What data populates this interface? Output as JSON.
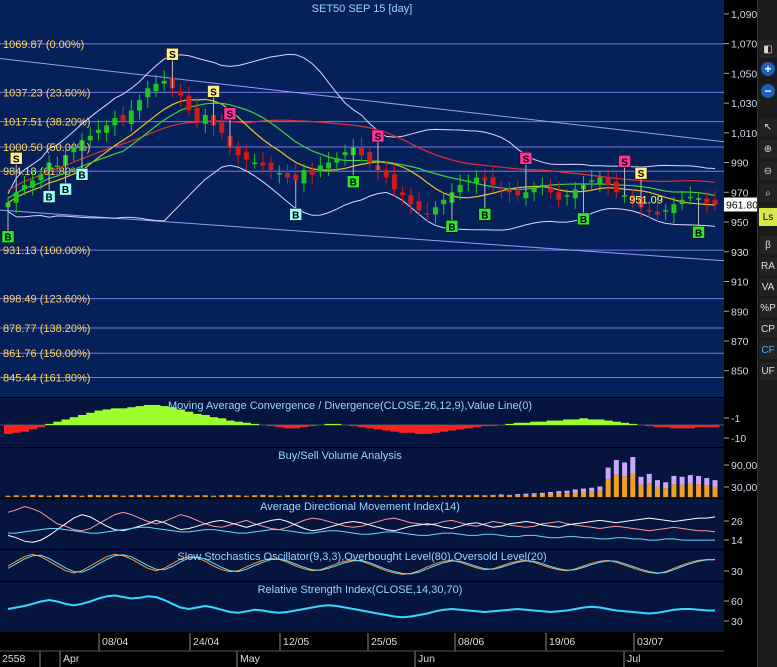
{
  "header": {
    "title": "SET50 SEP 15",
    "period": "[day]"
  },
  "colors": {
    "background": "#06205a",
    "up_candle": "#1fc41f",
    "down_candle": "#d21a1a",
    "fib_line": "#8a8aff",
    "channel": "#9a9af5",
    "bollinger": "#d8d8ff",
    "ma_red": "#e03030",
    "ma_yellow": "#f0c020",
    "ma_green": "#40d040",
    "macd_pos": "#9cff2c",
    "macd_neg": "#ff2020"
  },
  "chart_data": [
    {
      "name": "price",
      "type": "candlestick",
      "title": "SET50 SEP 15 [day]",
      "ylim": [
        833,
        1098
      ],
      "y_ticks": [
        "1,090",
        "1,070",
        "1,050",
        "1,030",
        "1,010",
        "990",
        "970",
        "950",
        "930",
        "910",
        "890",
        "870",
        "850"
      ],
      "last_price": "961.80",
      "fib_levels": [
        {
          "value": 1069.87,
          "label": "1069.87 (0.00%)"
        },
        {
          "value": 1037.23,
          "label": "1037.23 (23.60%)"
        },
        {
          "value": 1017.51,
          "label": "1017.51 (38.20%)"
        },
        {
          "value": 1000.5,
          "label": "1000.50 (50.00%)"
        },
        {
          "value": 984.18,
          "label": "984.18 (61.80%)"
        },
        {
          "value": 931.13,
          "label": "931.13 (100.00%)"
        },
        {
          "value": 898.49,
          "label": "898.49 (123.60%)"
        },
        {
          "value": 878.77,
          "label": "878.77 (138.20%)"
        },
        {
          "value": 861.76,
          "label": "861.76 (150.00%)"
        },
        {
          "value": 845.44,
          "label": "845.44 (161.80%)"
        }
      ],
      "annotation": "951.09",
      "close": [
        963,
        970,
        975,
        978,
        982,
        990,
        988,
        995,
        1000,
        1005,
        1008,
        1012,
        1015,
        1020,
        1018,
        1025,
        1032,
        1040,
        1043,
        1045,
        1040,
        1035,
        1025,
        1018,
        1022,
        1015,
        1010,
        1000,
        995,
        992,
        990,
        988,
        985,
        983,
        980,
        978,
        985,
        982,
        988,
        990,
        993,
        997,
        1000,
        995,
        990,
        985,
        980,
        972,
        968,
        962,
        958,
        955,
        960,
        965,
        970,
        975,
        978,
        980,
        978,
        975,
        972,
        970,
        968,
        970,
        973,
        975,
        970,
        965,
        968,
        972,
        975,
        978,
        980,
        975,
        970,
        968,
        965,
        960,
        957,
        955,
        958,
        962,
        965,
        967,
        966,
        963,
        961.8
      ],
      "signals": [
        {
          "i": 0,
          "type": "B"
        },
        {
          "i": 1,
          "type": "S"
        },
        {
          "i": 5,
          "type": "B"
        },
        {
          "i": 7,
          "type": "B"
        },
        {
          "i": 9,
          "type": "B"
        },
        {
          "i": 20,
          "type": "S"
        },
        {
          "i": 25,
          "type": "S"
        },
        {
          "i": 27,
          "type": "S"
        },
        {
          "i": 35,
          "type": "B"
        },
        {
          "i": 42,
          "type": "B"
        },
        {
          "i": 45,
          "type": "S"
        },
        {
          "i": 54,
          "type": "B"
        },
        {
          "i": 58,
          "type": "B"
        },
        {
          "i": 63,
          "type": "S"
        },
        {
          "i": 70,
          "type": "B"
        },
        {
          "i": 75,
          "type": "S"
        },
        {
          "i": 77,
          "type": "S"
        },
        {
          "i": 84,
          "type": "B"
        }
      ]
    },
    {
      "name": "macd",
      "type": "area",
      "title": "Moving Average Convergence / Divergence(CLOSE,26,12,9),Value Line(0)",
      "y_ticks": [
        "-1",
        "-10"
      ],
      "values": [
        -8,
        -7,
        -6,
        -4,
        -2,
        1,
        3,
        5,
        7,
        9,
        11,
        13,
        14,
        15,
        15,
        16,
        17,
        18,
        18,
        17,
        16,
        14,
        12,
        10,
        9,
        7,
        6,
        4,
        3,
        2,
        1,
        0,
        -1,
        -2,
        -3,
        -3,
        -2,
        -1,
        0,
        1,
        1,
        0,
        -1,
        -2,
        -3,
        -4,
        -5,
        -6,
        -7,
        -7,
        -8,
        -8,
        -7,
        -6,
        -5,
        -4,
        -3,
        -2,
        -1,
        -1,
        0,
        1,
        2,
        2,
        3,
        3,
        4,
        4,
        5,
        5,
        6,
        5,
        5,
        4,
        3,
        2,
        1,
        0,
        -1,
        -2,
        -2,
        -3,
        -3,
        -3,
        -2,
        -2,
        -2
      ]
    },
    {
      "name": "volume",
      "type": "bar",
      "title": "Buy/Sell Volume Analysis",
      "y_ticks": [
        "90,00",
        "30,00"
      ],
      "values": [
        3,
        4,
        3,
        5,
        4,
        3,
        4,
        5,
        4,
        3,
        5,
        4,
        4,
        5,
        3,
        4,
        5,
        4,
        3,
        4,
        5,
        4,
        3,
        4,
        4,
        3,
        4,
        5,
        4,
        3,
        4,
        5,
        4,
        3,
        4,
        4,
        5,
        3,
        4,
        5,
        4,
        3,
        4,
        4,
        5,
        4,
        3,
        5,
        4,
        4,
        5,
        4,
        3,
        4,
        5,
        4,
        4,
        5,
        4,
        5,
        6,
        5,
        7,
        8,
        9,
        10,
        12,
        14,
        15,
        18,
        20,
        22,
        25,
        70,
        88,
        82,
        95,
        48,
        55,
        40,
        35,
        50,
        48,
        52,
        50,
        45,
        40
      ]
    },
    {
      "name": "adx",
      "type": "line",
      "title": "Average Directional Movement Index(14)",
      "y_ticks": [
        "26",
        "14"
      ],
      "series": [
        {
          "values": [
            40,
            42,
            45,
            43,
            40,
            35,
            30,
            28,
            25,
            24,
            26,
            30,
            34,
            38,
            40,
            38,
            35,
            32,
            30,
            32,
            35,
            38,
            36,
            33,
            30,
            28,
            27,
            29,
            31,
            33,
            30,
            28,
            26,
            25,
            27,
            30,
            33,
            35,
            34,
            32,
            30,
            28,
            27,
            28,
            30,
            32,
            34,
            35,
            33,
            31,
            30,
            29,
            30,
            32,
            33,
            31,
            29,
            28,
            30,
            32,
            31,
            29,
            28,
            27,
            28,
            30,
            31,
            32,
            30,
            29,
            28,
            27,
            26,
            27,
            28,
            27,
            26,
            25,
            24,
            25,
            26,
            27,
            26,
            25,
            24,
            24,
            23
          ]
        },
        {
          "values": [
            20,
            18,
            15,
            14,
            16,
            20,
            25,
            30,
            35,
            38,
            36,
            32,
            28,
            25,
            24,
            26,
            28,
            30,
            33,
            31,
            28,
            25,
            26,
            28,
            30,
            32,
            33,
            31,
            29,
            27,
            29,
            31,
            33,
            34,
            32,
            29,
            26,
            24,
            25,
            27,
            29,
            31,
            32,
            31,
            29,
            27,
            25,
            24,
            26,
            28,
            29,
            30,
            29,
            27,
            26,
            28,
            30,
            31,
            29,
            27,
            28,
            30,
            31,
            32,
            31,
            29,
            28,
            27,
            29,
            30,
            31,
            32,
            33,
            32,
            31,
            32,
            33,
            34,
            35,
            34,
            33,
            32,
            33,
            34,
            35,
            35,
            36
          ]
        },
        {
          "values": [
            22,
            22,
            23,
            24,
            25,
            26,
            26,
            25,
            24,
            23,
            22,
            22,
            23,
            24,
            25,
            26,
            27,
            27,
            26,
            25,
            24,
            23,
            23,
            24,
            25,
            25,
            24,
            23,
            22,
            22,
            23,
            24,
            25,
            25,
            24,
            23,
            22,
            22,
            23,
            24,
            24,
            23,
            22,
            21,
            21,
            22,
            23,
            23,
            22,
            21,
            20,
            20,
            21,
            22,
            22,
            21,
            20,
            20,
            21,
            21,
            20,
            19,
            19,
            20,
            20,
            19,
            18,
            18,
            19,
            19,
            18,
            18,
            17,
            17,
            18,
            18,
            17,
            17,
            16,
            16,
            17,
            17,
            16,
            16,
            16,
            16,
            16
          ]
        }
      ]
    },
    {
      "name": "stochastic",
      "type": "line",
      "title": "Slow Stochastics Oscillator(9,3,3),Overbought Level(80),Oversold Level(20)",
      "y_ticks": [
        "30"
      ],
      "series": [
        {
          "values": [
            50,
            60,
            70,
            75,
            70,
            60,
            50,
            40,
            35,
            40,
            50,
            60,
            70,
            75,
            72,
            65,
            55,
            45,
            40,
            45,
            55,
            65,
            70,
            68,
            60,
            50,
            42,
            38,
            40,
            48,
            56,
            62,
            66,
            64,
            58,
            50,
            44,
            40,
            42,
            48,
            55,
            60,
            63,
            60,
            54,
            47,
            40,
            35,
            32,
            34,
            40,
            48,
            55,
            60,
            62,
            58,
            52,
            46,
            42,
            44,
            50,
            56,
            60,
            62,
            58,
            52,
            46,
            42,
            40,
            44,
            50,
            56,
            60,
            62,
            58,
            52,
            46,
            40,
            36,
            34,
            38,
            45,
            52,
            58,
            62,
            64,
            63
          ]
        },
        {
          "values": [
            45,
            55,
            65,
            72,
            73,
            66,
            56,
            46,
            38,
            37,
            44,
            54,
            64,
            72,
            74,
            70,
            61,
            51,
            43,
            42,
            49,
            59,
            67,
            69,
            65,
            56,
            47,
            40,
            38,
            43,
            51,
            58,
            64,
            65,
            61,
            54,
            47,
            42,
            41,
            45,
            51,
            57,
            61,
            62,
            57,
            50,
            43,
            38,
            34,
            33,
            37,
            44,
            51,
            57,
            61,
            60,
            55,
            49,
            44,
            43,
            47,
            53,
            58,
            61,
            60,
            55,
            49,
            44,
            41,
            42,
            47,
            53,
            58,
            61,
            60,
            55,
            49,
            43,
            38,
            35,
            36,
            42,
            49,
            55,
            60,
            63,
            64
          ]
        }
      ]
    },
    {
      "name": "rsi",
      "type": "line",
      "title": "Relative Strength Index(CLOSE,14,30,70)",
      "y_ticks": [
        "60",
        "30"
      ],
      "values": [
        48,
        50,
        52,
        55,
        58,
        60,
        58,
        55,
        53,
        55,
        58,
        62,
        65,
        66,
        64,
        62,
        63,
        65,
        64,
        60,
        55,
        50,
        48,
        50,
        52,
        50,
        47,
        44,
        43,
        45,
        47,
        46,
        44,
        43,
        44,
        46,
        48,
        50,
        52,
        53,
        52,
        50,
        48,
        46,
        44,
        42,
        40,
        38,
        37,
        38,
        40,
        42,
        45,
        47,
        48,
        47,
        46,
        45,
        44,
        45,
        46,
        47,
        48,
        47,
        46,
        45,
        44,
        45,
        46,
        48,
        50,
        51,
        50,
        48,
        46,
        45,
        44,
        43,
        42,
        43,
        45,
        47,
        48,
        48,
        47,
        46,
        46
      ]
    }
  ],
  "x_axis": {
    "years": [
      "2558"
    ],
    "dates": [
      "08/04",
      "24/04",
      "12/05",
      "25/05",
      "08/06",
      "19/06",
      "03/07"
    ],
    "months": [
      "Apr",
      "May",
      "Jun",
      "Jul"
    ]
  },
  "toolbar": {
    "items": [
      {
        "name": "zoom-in-icon"
      },
      {
        "name": "zoom-out-icon"
      },
      {
        "name": "search-icon"
      },
      {
        "name": "beta-label",
        "label": "β"
      },
      {
        "name": "ra-label",
        "label": "RA"
      },
      {
        "name": "va-label",
        "label": "VA"
      },
      {
        "name": "pct-label",
        "label": "%P"
      },
      {
        "name": "cp-label",
        "label": "CP"
      },
      {
        "name": "cf-label",
        "label": "CF"
      },
      {
        "name": "uf-label",
        "label": "UF"
      }
    ]
  }
}
